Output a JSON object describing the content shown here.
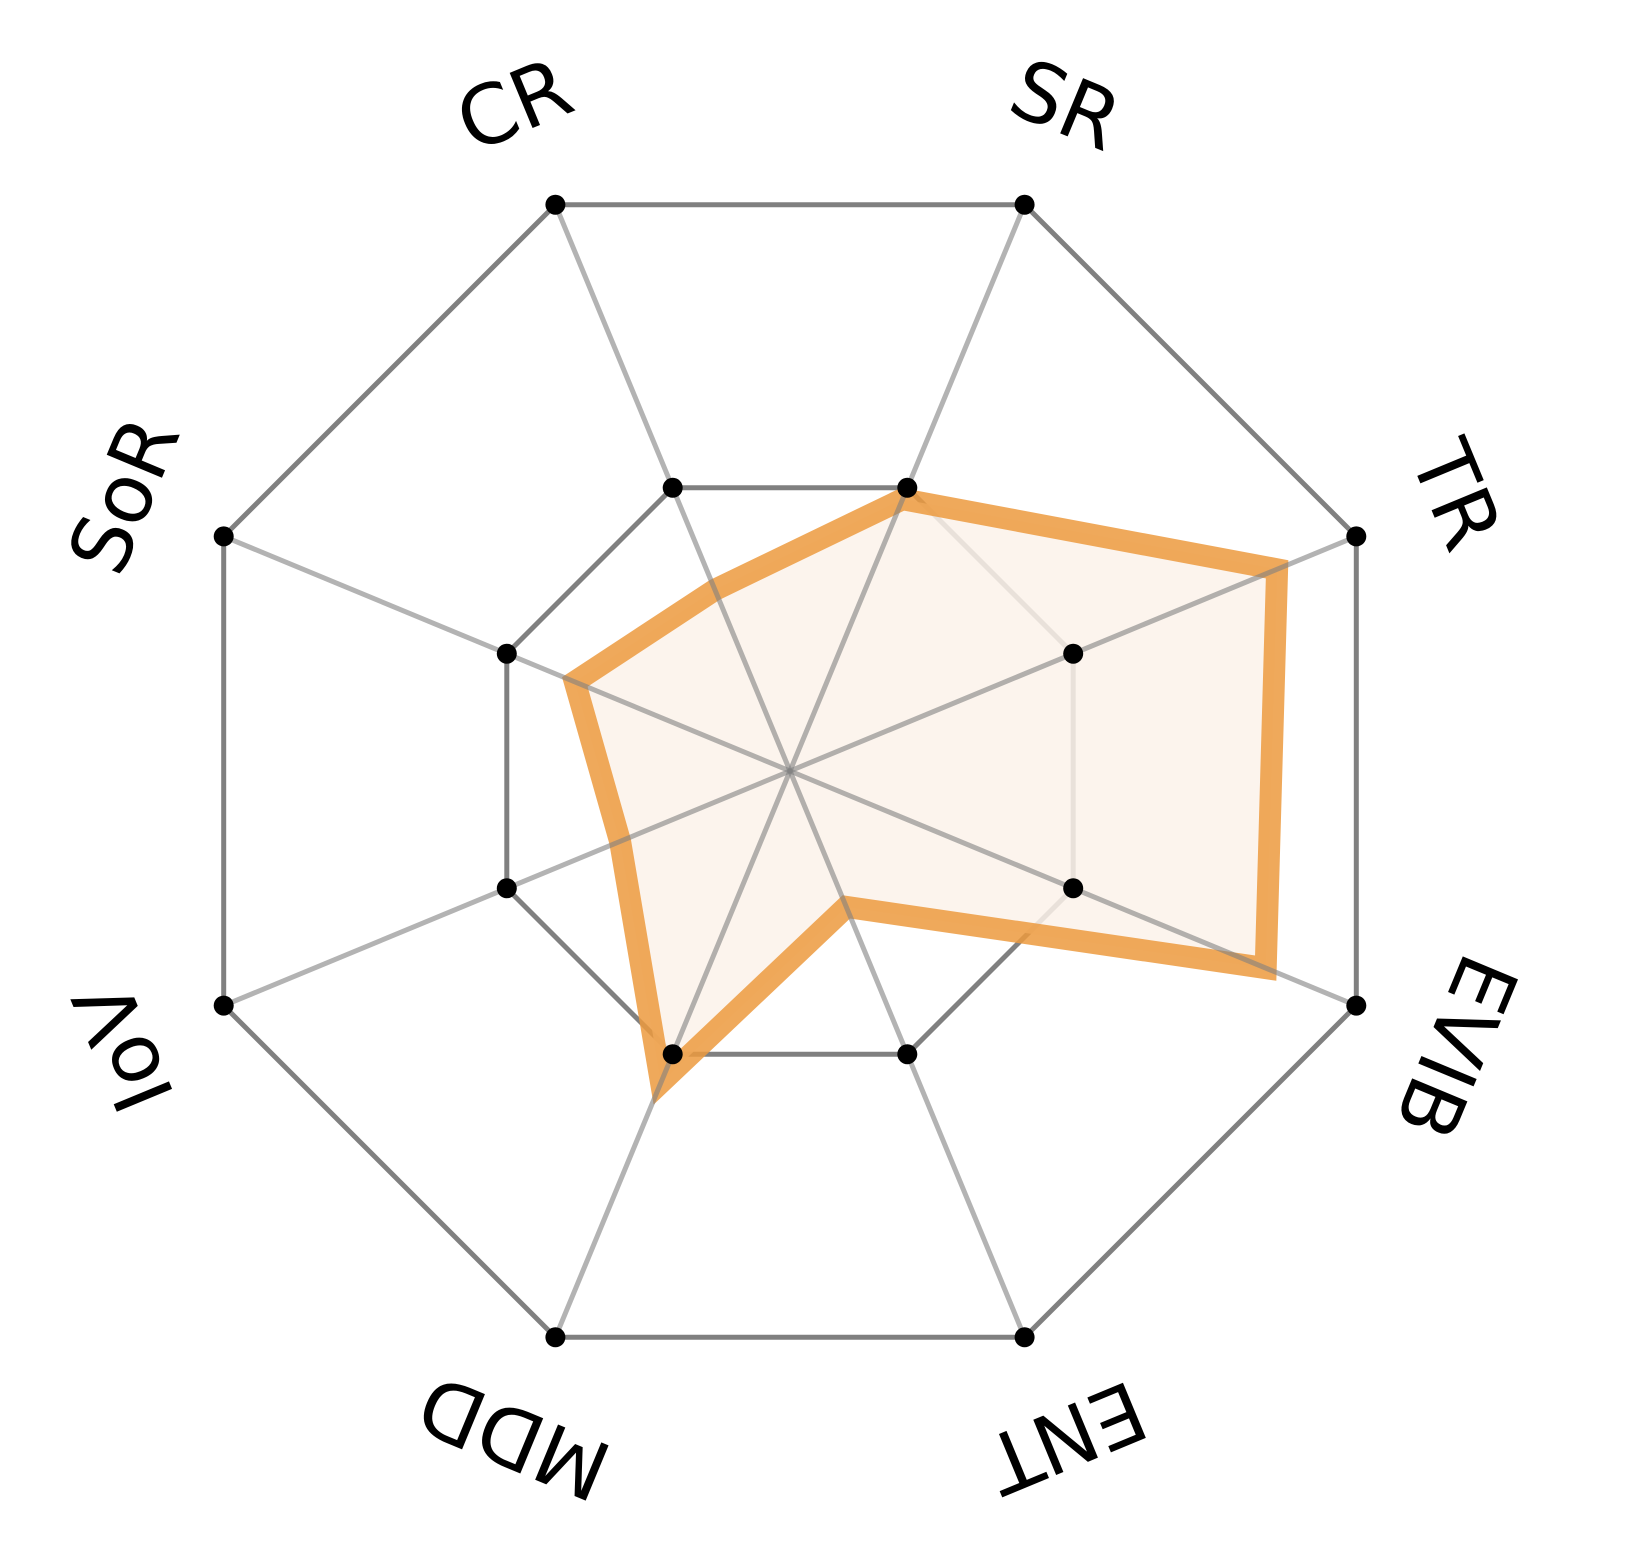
{
  "chart_data": {
    "type": "radar",
    "title": "",
    "axes": [
      "CR",
      "SR",
      "TR",
      "EVIB",
      "ENT",
      "MDD",
      "IoV",
      "SoR"
    ],
    "levels": [
      0.5,
      1.0
    ],
    "range": [
      0,
      1
    ],
    "series": [
      {
        "values": [
          0.32,
          0.48,
          0.86,
          0.84,
          0.24,
          0.55,
          0.3,
          0.38
        ]
      }
    ],
    "grid": true,
    "colors": {
      "grid": "#808080",
      "series_line": "#ec9a3e",
      "series_fill": "#fbf2ea",
      "marker": "#000000",
      "label": "#000000"
    }
  }
}
